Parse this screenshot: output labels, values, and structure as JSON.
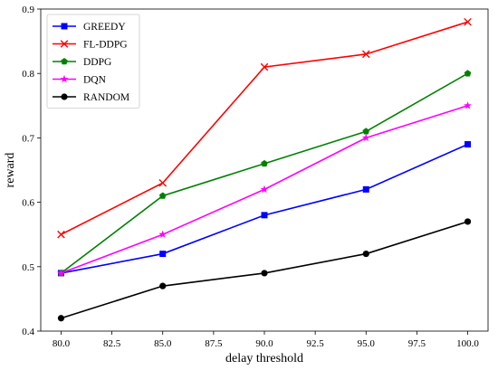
{
  "chart_data": {
    "type": "line",
    "title": "",
    "xlabel": "delay threshold",
    "ylabel": "reward",
    "x": [
      80.0,
      85.0,
      90.0,
      95.0,
      100.0
    ],
    "xlim": [
      79.0,
      101.0
    ],
    "ylim": [
      0.4,
      0.9
    ],
    "x_ticks": [
      "80.0",
      "82.5",
      "85.0",
      "87.5",
      "90.0",
      "92.5",
      "95.0",
      "97.5",
      "100.0"
    ],
    "y_ticks": [
      "0.4",
      "0.5",
      "0.6",
      "0.7",
      "0.8",
      "0.9"
    ],
    "grid": false,
    "legend_position": "top-left",
    "series": [
      {
        "name": "GREEDY",
        "color": "#0000ff",
        "marker": "square",
        "values": [
          0.49,
          0.52,
          0.58,
          0.62,
          0.69
        ]
      },
      {
        "name": "FL-DDPG",
        "color": "#ff0000",
        "marker": "x",
        "values": [
          0.55,
          0.63,
          0.81,
          0.83,
          0.88
        ]
      },
      {
        "name": "DDPG",
        "color": "#008000",
        "marker": "pentagon",
        "values": [
          0.49,
          0.61,
          0.66,
          0.71,
          0.8
        ]
      },
      {
        "name": "DQN",
        "color": "#ff00ff",
        "marker": "star",
        "values": [
          0.49,
          0.55,
          0.62,
          0.7,
          0.75
        ]
      },
      {
        "name": "RANDOM",
        "color": "#000000",
        "marker": "circle",
        "values": [
          0.42,
          0.47,
          0.49,
          0.52,
          0.57
        ]
      }
    ]
  }
}
